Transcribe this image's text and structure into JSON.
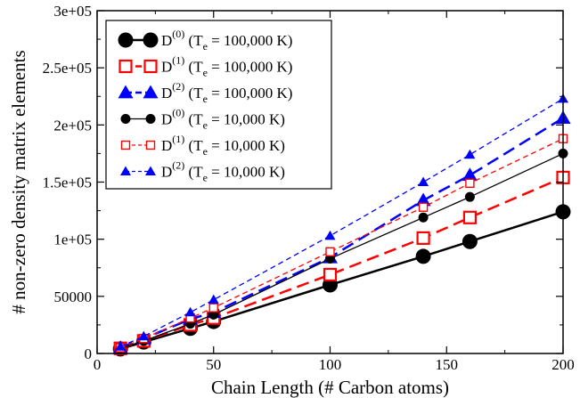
{
  "chart_data": {
    "type": "line",
    "xlabel": "Chain Length (# Carbon atoms)",
    "ylabel": "# non-zero density matrix elements",
    "xlim": [
      0,
      200
    ],
    "ylim": [
      0,
      300000
    ],
    "xticks": [
      "0",
      "50",
      "100",
      "150",
      "200"
    ],
    "yticks": [
      "0",
      "50000",
      "1e+05",
      "1.5e+05",
      "2e+05",
      "2.5e+05",
      "3e+05"
    ],
    "xtick_values": [
      0,
      50,
      100,
      150,
      200
    ],
    "ytick_values": [
      0,
      50000,
      100000,
      150000,
      200000,
      250000,
      300000
    ],
    "legend_position": "top-left",
    "series": [
      {
        "name_main": "D",
        "name_sup": "(0)",
        "name_rest": " (T",
        "name_sub": "e",
        "name_end": " = 100,000 K)",
        "color": "#000000",
        "marker": "circle",
        "size": "large",
        "dash": "solid",
        "x": [
          10,
          20,
          40,
          50,
          100,
          140,
          160,
          200
        ],
        "y": [
          4000,
          10000,
          22000,
          28000,
          60000,
          85000,
          98000,
          124000
        ]
      },
      {
        "name_main": "D",
        "name_sup": "(1)",
        "name_rest": " (T",
        "name_sub": "e",
        "name_end": " = 100,000 K)",
        "color": "#ff0000",
        "marker": "square",
        "size": "large",
        "dash": "longdash",
        "x": [
          10,
          20,
          40,
          50,
          100,
          140,
          160,
          200
        ],
        "y": [
          4500,
          11000,
          25000,
          31000,
          69000,
          101000,
          119000,
          154000
        ]
      },
      {
        "name_main": "D",
        "name_sup": "(2)",
        "name_rest": " (T",
        "name_sub": "e",
        "name_end": " = 100,000 K)",
        "color": "#0000ff",
        "marker": "triangle",
        "size": "large",
        "dash": "longdash",
        "x": [
          10,
          20,
          40,
          50,
          100,
          140,
          160,
          200
        ],
        "y": [
          5000,
          13000,
          30000,
          36000,
          84000,
          134000,
          156000,
          206000
        ]
      },
      {
        "name_main": "D",
        "name_sup": "(0)",
        "name_rest": " (T",
        "name_sub": "e",
        "name_end": " = 10,000 K)",
        "color": "#000000",
        "marker": "circle",
        "size": "small",
        "dash": "solid",
        "x": [
          10,
          20,
          40,
          50,
          100,
          140,
          160,
          200
        ],
        "y": [
          4500,
          11000,
          26000,
          34000,
          83000,
          119000,
          137000,
          175000
        ]
      },
      {
        "name_main": "D",
        "name_sup": "(1)",
        "name_rest": " (T",
        "name_sub": "e",
        "name_end": " = 10,000 K)",
        "color": "#ff0000",
        "marker": "square",
        "size": "small",
        "dash": "shortdash",
        "x": [
          10,
          20,
          40,
          50,
          100,
          140,
          160,
          200
        ],
        "y": [
          5000,
          13000,
          31000,
          40000,
          89000,
          128000,
          149000,
          188000
        ]
      },
      {
        "name_main": "D",
        "name_sup": "(2)",
        "name_rest": " (T",
        "name_sub": "e",
        "name_end": " = 10,000 K)",
        "color": "#0000ff",
        "marker": "triangle",
        "size": "small",
        "dash": "shortdash",
        "x": [
          10,
          20,
          40,
          50,
          100,
          140,
          160,
          200
        ],
        "y": [
          6000,
          15000,
          36000,
          47000,
          103000,
          150000,
          174000,
          223000
        ]
      }
    ]
  }
}
